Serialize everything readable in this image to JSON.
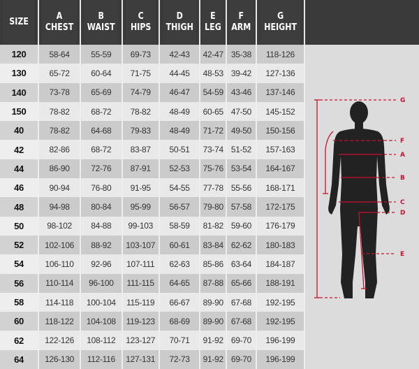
{
  "table": {
    "headers": [
      {
        "letter": "",
        "label": "SIZE"
      },
      {
        "letter": "A",
        "label": "CHEST"
      },
      {
        "letter": "B",
        "label": "WAIST"
      },
      {
        "letter": "C",
        "label": "HIPS"
      },
      {
        "letter": "D",
        "label": "THIGH"
      },
      {
        "letter": "E",
        "label": "LEG"
      },
      {
        "letter": "F",
        "label": "ARM"
      },
      {
        "letter": "G",
        "label": "HEIGHT"
      }
    ],
    "rows": [
      [
        "120",
        "58-64",
        "55-59",
        "69-73",
        "42-43",
        "42-47",
        "35-38",
        "118-126"
      ],
      [
        "130",
        "65-72",
        "60-64",
        "71-75",
        "44-45",
        "48-53",
        "39-42",
        "127-136"
      ],
      [
        "140",
        "73-78",
        "65-69",
        "74-79",
        "46-47",
        "54-59",
        "43-46",
        "137-146"
      ],
      [
        "150",
        "78-82",
        "68-72",
        "78-82",
        "48-49",
        "60-65",
        "47-50",
        "145-152"
      ],
      [
        "40",
        "78-82",
        "64-68",
        "79-83",
        "48-49",
        "71-72",
        "49-50",
        "150-156"
      ],
      [
        "42",
        "82-86",
        "68-72",
        "83-87",
        "50-51",
        "73-74",
        "51-52",
        "157-163"
      ],
      [
        "44",
        "86-90",
        "72-76",
        "87-91",
        "52-53",
        "75-76",
        "53-54",
        "164-167"
      ],
      [
        "46",
        "90-94",
        "76-80",
        "91-95",
        "54-55",
        "77-78",
        "55-56",
        "168-171"
      ],
      [
        "48",
        "94-98",
        "80-84",
        "95-99",
        "56-57",
        "79-80",
        "57-58",
        "172-175"
      ],
      [
        "50",
        "98-102",
        "84-88",
        "99-103",
        "58-59",
        "81-82",
        "59-60",
        "176-179"
      ],
      [
        "52",
        "102-106",
        "88-92",
        "103-107",
        "60-61",
        "83-84",
        "62-62",
        "180-183"
      ],
      [
        "54",
        "106-110",
        "92-96",
        "107-111",
        "62-63",
        "85-86",
        "63-64",
        "184-187"
      ],
      [
        "56",
        "110-114",
        "96-100",
        "111-115",
        "64-65",
        "87-88",
        "65-66",
        "188-191"
      ],
      [
        "58",
        "114-118",
        "100-104",
        "115-119",
        "66-67",
        "89-90",
        "67-68",
        "192-195"
      ],
      [
        "60",
        "118-122",
        "104-108",
        "119-123",
        "68-69",
        "89-90",
        "67-68",
        "192-195"
      ],
      [
        "62",
        "122-126",
        "108-112",
        "123-127",
        "70-71",
        "91-92",
        "69-70",
        "196-199"
      ],
      [
        "64",
        "126-130",
        "112-116",
        "127-131",
        "72-73",
        "91-92",
        "69-70",
        "196-199"
      ]
    ]
  },
  "figure": {
    "labels": {
      "G": "G",
      "F": "F",
      "A": "A",
      "B": "B",
      "C": "C",
      "D": "D",
      "E": "E"
    },
    "accent": "#c8102e",
    "silhouette": "#222222"
  }
}
